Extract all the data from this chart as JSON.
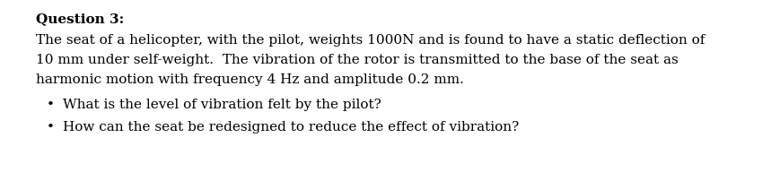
{
  "title": "Question 3:",
  "line1": "The seat of a helicopter, with the pilot, weights 1000N and is found to have a static deflection of",
  "line2": "10 mm under self-weight.  The vibration of the rotor is transmitted to the base of the seat as",
  "line3": "harmonic motion with frequency 4 Hz and amplitude 0.2 mm.",
  "bullet1": "What is the level of vibration felt by the pilot?",
  "bullet2": "How can the seat be redesigned to reduce the effect of vibration?",
  "background_color": "#ffffff",
  "text_color": "#000000",
  "font_family": "DejaVu Serif",
  "title_fontsize": 11.0,
  "body_fontsize": 11.0
}
